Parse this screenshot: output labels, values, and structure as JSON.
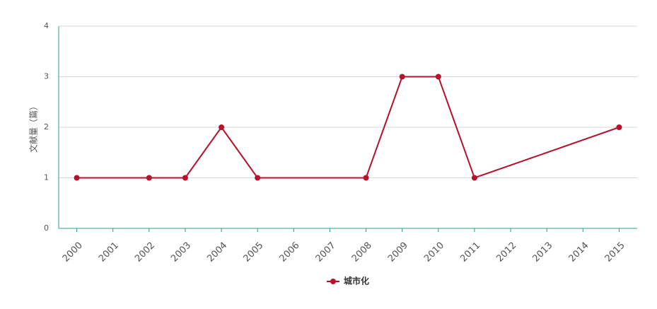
{
  "chart_data": {
    "type": "line",
    "y_label": "文献量（篇）",
    "x": [
      2000,
      2002,
      2003,
      2004,
      2005,
      2008,
      2009,
      2010,
      2011,
      2015
    ],
    "xlim": [
      1999.5,
      2015.5
    ],
    "xticks": [
      2000,
      2001,
      2002,
      2003,
      2004,
      2005,
      2006,
      2007,
      2008,
      2009,
      2010,
      2011,
      2012,
      2013,
      2014,
      2015
    ],
    "ylim": [
      0,
      4
    ],
    "yticks": [
      0,
      1,
      2,
      3,
      4
    ],
    "grid": true,
    "legend": "bottom",
    "series": [
      {
        "name": "城市化",
        "color": "#b5122b",
        "values": [
          1,
          1,
          1,
          2,
          1,
          1,
          3,
          3,
          1,
          2
        ]
      }
    ]
  }
}
